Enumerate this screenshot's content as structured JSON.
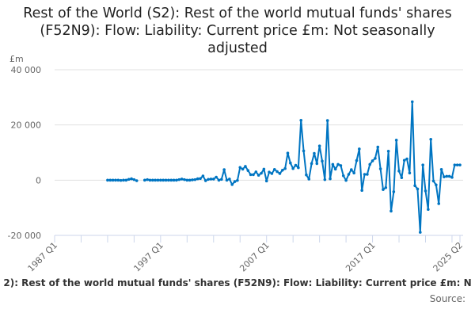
{
  "chart_data": {
    "type": "line",
    "title": "Rest of the World (S2): Rest of the world mutual funds' shares (F52N9): Flow: Liability: Current price £m: Not seasonally adjusted",
    "ylabel": "£m",
    "xlabel": "",
    "ylim": [
      -20000,
      40000
    ],
    "yticks": [
      40000,
      20000,
      0,
      -20000
    ],
    "ytick_labels": [
      "40 000",
      "20 000",
      "0",
      "-20 000"
    ],
    "xtick_labels": [
      "1987 Q1",
      "1997 Q1",
      "2007 Q1",
      "2017 Q1",
      "2025 Q2"
    ],
    "xtick_positions": [
      1987.0,
      1997.0,
      2007.0,
      2017.0,
      2025.25
    ],
    "x_start": "1992 Q1",
    "x_start_year": 1992,
    "grid": true,
    "color": "#0075c2",
    "series": [
      {
        "name": "Rest of the world mutual funds' shares (F52N9)",
        "values": [
          0,
          0,
          0,
          0,
          0,
          -100,
          0,
          0,
          300,
          500,
          200,
          -200,
          null,
          null,
          0,
          200,
          0,
          0,
          0,
          0,
          0,
          0,
          0,
          0,
          0,
          0,
          0,
          200,
          400,
          200,
          0,
          0,
          100,
          200,
          500,
          600,
          1500,
          -200,
          300,
          400,
          400,
          1100,
          0,
          300,
          3800,
          0,
          400,
          -1600,
          -500,
          -100,
          4600,
          4000,
          5000,
          3500,
          2000,
          2000,
          3000,
          1800,
          2500,
          4000,
          -300,
          2900,
          2400,
          3900,
          3100,
          2400,
          3600,
          4200,
          9800,
          6200,
          4200,
          5400,
          4500,
          21700,
          10600,
          1900,
          400,
          6000,
          9700,
          6000,
          12400,
          6900,
          200,
          21600,
          500,
          5700,
          4000,
          5700,
          5300,
          1600,
          -100,
          2100,
          3800,
          2600,
          7100,
          11300,
          -3700,
          2100,
          2100,
          5700,
          7000,
          7900,
          12000,
          4100,
          -3400,
          -2700,
          10500,
          -11200,
          -4200,
          14500,
          3300,
          900,
          7200,
          7700,
          2600,
          28400,
          -2000,
          -3200,
          -18900,
          5500,
          -3900,
          -10600,
          14800,
          -300,
          -1700,
          -8500,
          3900,
          1200,
          1400,
          1400,
          1000,
          5500,
          5500,
          5500
        ]
      }
    ]
  },
  "caption": "2): Rest of the world mutual funds' shares (F52N9): Flow: Liability: Current price £m: N",
  "source_label": "Source:"
}
